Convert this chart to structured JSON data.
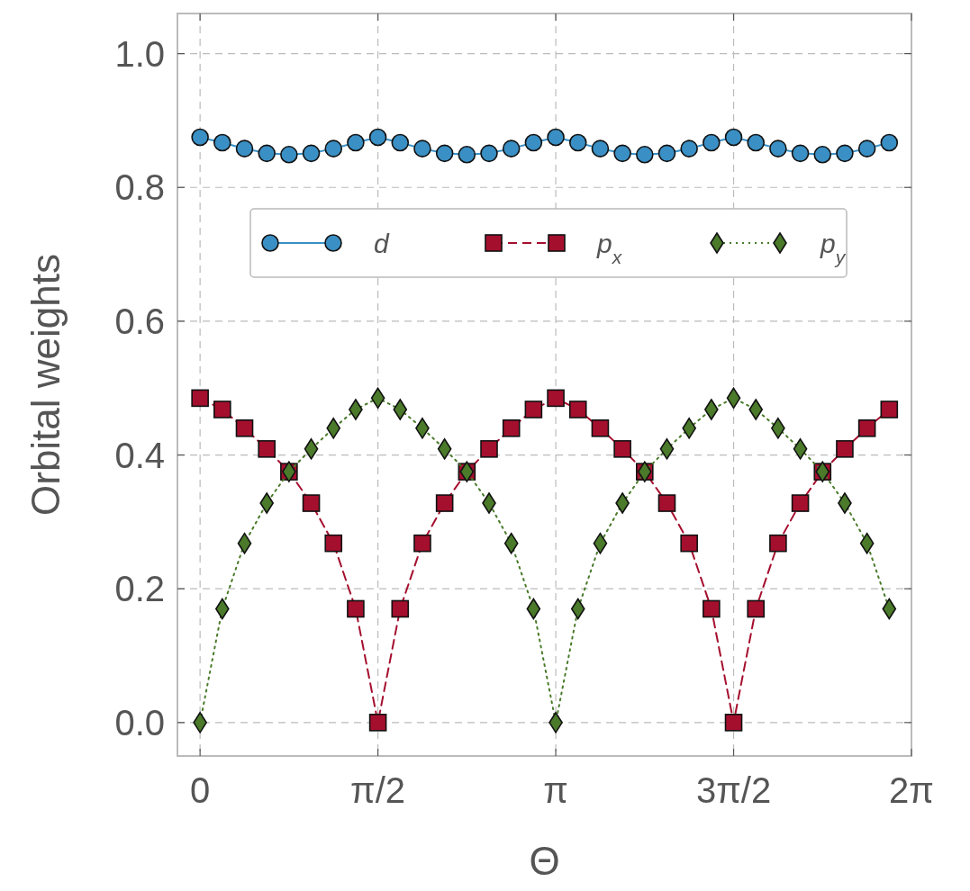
{
  "chart_data": {
    "type": "line",
    "xlabel": "Θ",
    "ylabel": "Orbital weights",
    "x": [
      0,
      0.1963,
      0.3927,
      0.589,
      0.7854,
      0.9817,
      1.1781,
      1.3744,
      1.5708,
      1.7671,
      1.9635,
      2.1598,
      2.3562,
      2.5525,
      2.7489,
      2.9452,
      3.1416,
      3.3379,
      3.5343,
      3.7306,
      3.927,
      4.1233,
      4.3197,
      4.516,
      4.7124,
      4.9087,
      5.1051,
      5.3014,
      5.4978,
      5.6941,
      5.8905,
      6.0868
    ],
    "series": [
      {
        "name": "d",
        "color": "#3a8fc4",
        "marker": "circle",
        "line_style": "solid",
        "values": [
          0.875,
          0.867,
          0.858,
          0.851,
          0.849,
          0.851,
          0.858,
          0.867,
          0.875,
          0.867,
          0.858,
          0.851,
          0.849,
          0.851,
          0.858,
          0.867,
          0.875,
          0.867,
          0.858,
          0.851,
          0.849,
          0.851,
          0.858,
          0.867,
          0.875,
          0.867,
          0.858,
          0.851,
          0.849,
          0.851,
          0.858,
          0.867
        ]
      },
      {
        "name": "p$_{x}$",
        "color": "#a50f2e",
        "marker": "square",
        "line_style": "dashed",
        "values": [
          0.485,
          0.468,
          0.44,
          0.409,
          0.375,
          0.328,
          0.268,
          0.17,
          0,
          0.17,
          0.268,
          0.328,
          0.375,
          0.409,
          0.44,
          0.468,
          0.485,
          0.468,
          0.44,
          0.409,
          0.375,
          0.328,
          0.268,
          0.17,
          0,
          0.17,
          0.268,
          0.328,
          0.375,
          0.409,
          0.44,
          0.468
        ]
      },
      {
        "name": "p$_{y}$",
        "color": "#4a7a2a",
        "marker": "diamond",
        "line_style": "dotted",
        "values": [
          0,
          0.17,
          0.268,
          0.328,
          0.375,
          0.409,
          0.44,
          0.468,
          0.485,
          0.468,
          0.44,
          0.409,
          0.375,
          0.328,
          0.268,
          0.17,
          0,
          0.17,
          0.268,
          0.328,
          0.375,
          0.409,
          0.44,
          0.468,
          0.485,
          0.468,
          0.44,
          0.409,
          0.375,
          0.328,
          0.268,
          0.17
        ]
      }
    ],
    "xlim": [
      -0.2,
      6.2832
    ],
    "xticks": [
      0,
      {
        "value": 1.5708,
        "label": "π/2"
      },
      {
        "value": 3.1416,
        "label": "π"
      },
      {
        "value": 4.7124,
        "label": "3π/2"
      },
      {
        "value": 6.2832,
        "label": "2π"
      }
    ],
    "ylim": [
      -0.05,
      1.06
    ],
    "yticks": [
      {
        "value": 0,
        "label": "0.0"
      },
      {
        "value": 0.2,
        "label": "0.2"
      },
      {
        "value": 0.4,
        "label": "0.4"
      },
      {
        "value": 0.6,
        "label": "0.6"
      },
      {
        "value": 0.8,
        "label": "0.8"
      },
      {
        "value": 1,
        "label": "1.0"
      }
    ],
    "grid": true,
    "legend": "top"
  }
}
